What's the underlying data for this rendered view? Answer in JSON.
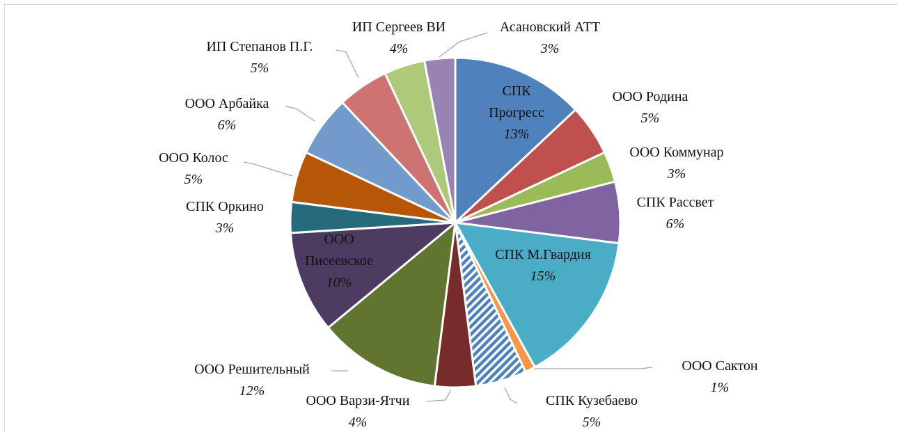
{
  "chart_data": {
    "type": "pie",
    "categories": [
      "СПК Прогресс",
      "ООО Родина",
      "ООО Коммунар",
      "СПК Рассвет",
      "СПК М.Гвардия",
      "ООО Сактон",
      "СПК Кузебаево",
      "ООО Варзи-Ятчи",
      "ООО Решительный",
      "ООО Писеевское",
      "СПК Оркино",
      "ООО Колос",
      "ООО Арбайка",
      "ИП Степанов П.Г.",
      "ИП Сергеев ВИ",
      "Асановский АТТ"
    ],
    "values": [
      13,
      5,
      3,
      6,
      15,
      1,
      5,
      4,
      12,
      10,
      3,
      5,
      6,
      5,
      4,
      3
    ],
    "value_labels": [
      "13%",
      "5%",
      "3%",
      "6%",
      "15%",
      "1%",
      "5%",
      "4%",
      "12%",
      "10%",
      "3%",
      "5%",
      "6%",
      "5%",
      "4%",
      "3%"
    ],
    "colors": [
      "#4f81bd",
      "#c0504d",
      "#9bbb59",
      "#8064a2",
      "#4bacc6",
      "#f79646",
      "#4f81bd",
      "#772c2a",
      "#5f7530",
      "#4d3b62",
      "#276a7c",
      "#b65708",
      "#729aca",
      "#cd7371",
      "#afc97a",
      "#9983b5"
    ],
    "hatched": [
      "СПК Кузебаево"
    ]
  }
}
